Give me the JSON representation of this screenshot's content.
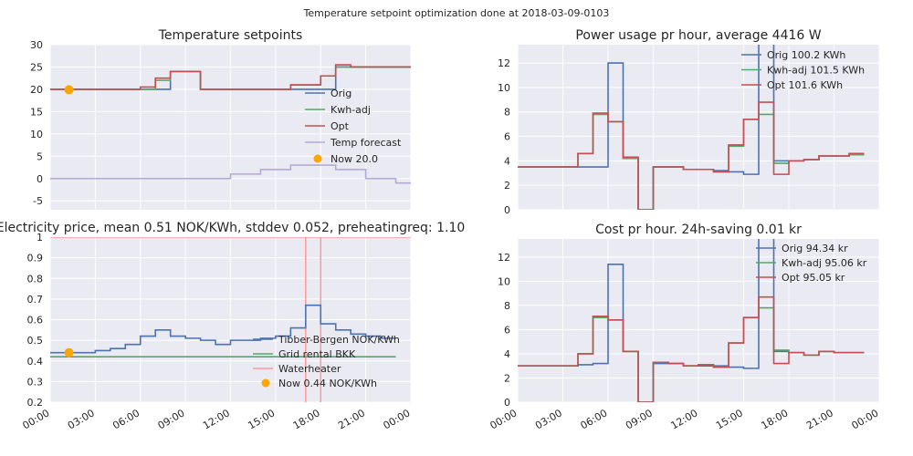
{
  "figure_title": "Temperature setpoint optimization done at 2018-03-09-0103",
  "colors": {
    "orig": "#4c72b0",
    "kwh": "#55a868",
    "opt": "#c44e52",
    "forecast": "#b3a9d6",
    "now": "#ffa500",
    "waterheater": "#ff9999"
  },
  "chart_data": [
    {
      "id": "temp",
      "type": "line",
      "title": "Temperature setpoints",
      "xlim": [
        0,
        24
      ],
      "ylim": [
        -7,
        30
      ],
      "yticks": [
        -5,
        0,
        5,
        10,
        15,
        20,
        25,
        30
      ],
      "xticks": [],
      "series": [
        {
          "name": "Orig",
          "color": "#4c72b0",
          "step": true,
          "x": [
            0,
            4,
            5,
            6,
            7,
            8,
            9,
            10,
            11,
            12,
            13,
            14,
            15,
            16,
            17,
            18,
            19,
            20,
            21,
            22,
            23
          ],
          "y": [
            20,
            20,
            20,
            20,
            20,
            24,
            24,
            20,
            20,
            20,
            20,
            20,
            20,
            20,
            20,
            20,
            25,
            25,
            25,
            25,
            25
          ]
        },
        {
          "name": "Kwh-adj",
          "color": "#55a868",
          "step": true,
          "x": [
            0,
            4,
            5,
            6,
            7,
            8,
            9,
            10,
            11,
            12,
            13,
            14,
            15,
            16,
            17,
            18,
            19,
            20,
            21,
            22,
            23
          ],
          "y": [
            20,
            20,
            20,
            20,
            22,
            24,
            24,
            20,
            20,
            20,
            20,
            20,
            20,
            21,
            21,
            23,
            25,
            25,
            25,
            25,
            25
          ]
        },
        {
          "name": "Opt",
          "color": "#c44e52",
          "step": true,
          "x": [
            0,
            4,
            5,
            6,
            7,
            8,
            9,
            10,
            11,
            12,
            13,
            14,
            15,
            16,
            17,
            18,
            19,
            20,
            21,
            22,
            23
          ],
          "y": [
            20,
            20,
            20,
            20.5,
            22.5,
            24,
            24,
            20,
            20,
            20,
            20,
            20,
            20,
            21,
            21,
            23,
            25.5,
            25,
            25,
            25,
            25
          ]
        },
        {
          "name": "Temp forecast",
          "color": "#b3a9d6",
          "step": true,
          "x": [
            0,
            3,
            6,
            9,
            10,
            11,
            12,
            13,
            14,
            15,
            16,
            17,
            18,
            19,
            20,
            21,
            22,
            23
          ],
          "y": [
            0,
            0,
            0,
            0,
            0,
            0,
            1,
            1,
            2,
            2,
            3,
            3,
            3,
            2,
            2,
            0,
            0,
            -1
          ]
        }
      ],
      "now": {
        "x": 1.25,
        "y": 19.9,
        "label": "Now 20.0"
      },
      "legend": [
        "Orig",
        "Kwh-adj",
        "Opt",
        "Temp forecast",
        "Now 20.0"
      ]
    },
    {
      "id": "power",
      "type": "line",
      "title": "Power usage pr hour, average 4416 W",
      "xlim": [
        0,
        24
      ],
      "ylim": [
        0,
        13.5
      ],
      "yticks": [
        0,
        2,
        4,
        6,
        8,
        10,
        12
      ],
      "xticks": [],
      "series": [
        {
          "name": "Orig 100.2 KWh",
          "color": "#4c72b0",
          "step": true,
          "x": [
            0,
            1,
            2,
            3,
            4,
            5,
            6,
            7,
            8,
            9,
            10,
            11,
            12,
            13,
            14,
            15,
            16,
            17,
            18,
            19,
            20,
            21,
            22
          ],
          "y": [
            3.5,
            3.5,
            3.5,
            3.5,
            3.5,
            3.5,
            12,
            4.2,
            0,
            3.5,
            3.5,
            3.3,
            3.3,
            3.2,
            3.1,
            2.9,
            14,
            4,
            4,
            4.1,
            4.4,
            4.4,
            4.5
          ]
        },
        {
          "name": "Kwh-adj 101.5 KWh",
          "color": "#55a868",
          "step": true,
          "x": [
            0,
            1,
            2,
            3,
            4,
            5,
            6,
            7,
            8,
            9,
            10,
            11,
            12,
            13,
            14,
            15,
            16,
            17,
            18,
            19,
            20,
            21,
            22
          ],
          "y": [
            3.5,
            3.5,
            3.5,
            3.5,
            4.6,
            7.8,
            7.2,
            4.2,
            0,
            3.5,
            3.5,
            3.3,
            3.3,
            3.1,
            5.2,
            7.4,
            7.8,
            3.8,
            4,
            4.1,
            4.4,
            4.4,
            4.5
          ]
        },
        {
          "name": "Opt 101.6 KWh",
          "color": "#c44e52",
          "step": true,
          "x": [
            0,
            1,
            2,
            3,
            4,
            5,
            6,
            7,
            8,
            9,
            10,
            11,
            12,
            13,
            14,
            15,
            16,
            17,
            18,
            19,
            20,
            21,
            22
          ],
          "y": [
            3.5,
            3.5,
            3.5,
            3.5,
            4.6,
            7.9,
            7.2,
            4.3,
            0,
            3.5,
            3.5,
            3.3,
            3.3,
            3.1,
            5.3,
            7.4,
            8.8,
            2.9,
            4,
            4.1,
            4.4,
            4.4,
            4.6
          ]
        }
      ],
      "legend": [
        "Orig 100.2 KWh",
        "Kwh-adj 101.5 KWh",
        "Opt 101.6 KWh"
      ]
    },
    {
      "id": "price",
      "type": "line",
      "title": "Electricity price, mean 0.51 NOK/KWh, stddev 0.052, preheatingreq: 1.10",
      "xlim": [
        0,
        24
      ],
      "ylim": [
        0.2,
        1.0
      ],
      "yticks": [
        0.2,
        0.3,
        0.4,
        0.5,
        0.6,
        0.7,
        0.8,
        0.9,
        1.0
      ],
      "xticks": [
        "00:00",
        "03:00",
        "06:00",
        "09:00",
        "12:00",
        "15:00",
        "18:00",
        "21:00",
        "00:00"
      ],
      "series": [
        {
          "name": "Tibber-Bergen NOK/KWh",
          "color": "#4c72b0",
          "step": true,
          "x": [
            0,
            1,
            2,
            3,
            4,
            5,
            6,
            7,
            8,
            9,
            10,
            11,
            12,
            13,
            14,
            15,
            16,
            17,
            18,
            19,
            20,
            21,
            22
          ],
          "y": [
            0.44,
            0.44,
            0.44,
            0.45,
            0.46,
            0.48,
            0.52,
            0.55,
            0.52,
            0.51,
            0.5,
            0.48,
            0.5,
            0.5,
            0.51,
            0.52,
            0.56,
            0.67,
            0.58,
            0.55,
            0.53,
            0.52,
            0.51
          ]
        },
        {
          "name": "Grid rental BKK",
          "color": "#55a868",
          "step": false,
          "x": [
            0,
            23
          ],
          "y": [
            0.42,
            0.42
          ]
        }
      ],
      "waterheater": {
        "name": "Waterheater",
        "off": [
          17,
          18
        ]
      },
      "now": {
        "x": 1.25,
        "y": 0.44,
        "label": "Now 0.44 NOK/KWh"
      },
      "legend": [
        "Tibber-Bergen NOK/KWh",
        "Grid rental BKK",
        "Waterheater",
        "Now 0.44 NOK/KWh"
      ]
    },
    {
      "id": "cost",
      "type": "line",
      "title": "Cost pr hour. 24h-saving 0.01 kr",
      "xlim": [
        0,
        24
      ],
      "ylim": [
        0,
        13.5
      ],
      "yticks": [
        0,
        2,
        4,
        6,
        8,
        10,
        12
      ],
      "xticks": [
        "00:00",
        "03:00",
        "06:00",
        "09:00",
        "12:00",
        "15:00",
        "18:00",
        "21:00",
        "00:00"
      ],
      "series": [
        {
          "name": "Orig 94.34 kr",
          "color": "#4c72b0",
          "step": true,
          "x": [
            0,
            1,
            2,
            3,
            4,
            5,
            6,
            7,
            8,
            9,
            10,
            11,
            12,
            13,
            14,
            15,
            16,
            17,
            18,
            19,
            20,
            21,
            22
          ],
          "y": [
            3,
            3,
            3,
            3,
            3.1,
            3.2,
            11.4,
            4.2,
            0,
            3.2,
            3.2,
            3,
            3,
            3,
            2.9,
            2.8,
            14,
            4.2,
            4.1,
            3.9,
            4.2,
            4.1,
            4.1
          ]
        },
        {
          "name": "Kwh-adj 95.06 kr",
          "color": "#55a868",
          "step": true,
          "x": [
            0,
            1,
            2,
            3,
            4,
            5,
            6,
            7,
            8,
            9,
            10,
            11,
            12,
            13,
            14,
            15,
            16,
            17,
            18,
            19,
            20,
            21,
            22
          ],
          "y": [
            3,
            3,
            3,
            3,
            4,
            7,
            6.8,
            4.2,
            0,
            3.3,
            3.2,
            3,
            3.1,
            2.9,
            4.9,
            7,
            7.8,
            4.3,
            4.1,
            3.9,
            4.2,
            4.1,
            4.1
          ]
        },
        {
          "name": "Opt 95.05 kr",
          "color": "#c44e52",
          "step": true,
          "x": [
            0,
            1,
            2,
            3,
            4,
            5,
            6,
            7,
            8,
            9,
            10,
            11,
            12,
            13,
            14,
            15,
            16,
            17,
            18,
            19,
            20,
            21,
            22
          ],
          "y": [
            3,
            3,
            3,
            3,
            4,
            7.1,
            6.8,
            4.2,
            0,
            3.3,
            3.2,
            3,
            3.1,
            2.9,
            4.9,
            7,
            8.7,
            3.2,
            4.1,
            3.9,
            4.2,
            4.1,
            4.1
          ]
        }
      ],
      "legend": [
        "Orig 94.34 kr",
        "Kwh-adj 95.06 kr",
        "Opt 95.05 kr"
      ]
    }
  ]
}
